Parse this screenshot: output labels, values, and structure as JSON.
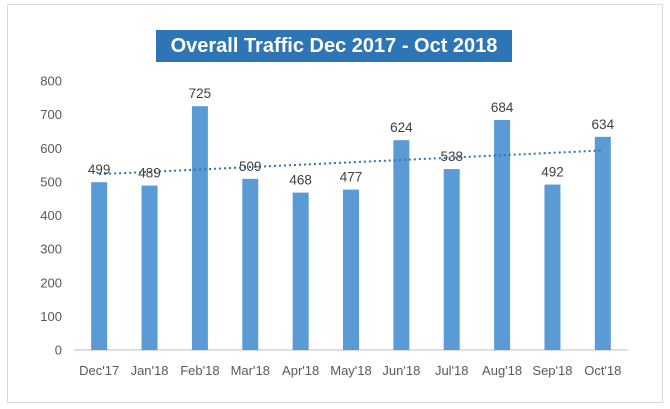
{
  "chart_data": {
    "type": "bar",
    "title": "Overall Traffic Dec 2017 - Oct 2018",
    "categories": [
      "Dec'17",
      "Jan'18",
      "Feb'18",
      "Mar'18",
      "Apr'18",
      "May'18",
      "Jun'18",
      "Jul'18",
      "Aug'18",
      "Sep'18",
      "Oct'18"
    ],
    "values": [
      499,
      489,
      725,
      509,
      468,
      477,
      624,
      538,
      684,
      492,
      634
    ],
    "ylim": [
      0,
      800
    ],
    "yticks": [
      0,
      100,
      200,
      300,
      400,
      500,
      600,
      700,
      800
    ],
    "trendline": "linear (dotted)",
    "grid": false,
    "legend": "none",
    "colors": {
      "bar": "#5b9bd5",
      "trendline": "#2e75b6",
      "title_background": "#2e75b6",
      "title_text": "#ffffff"
    }
  }
}
